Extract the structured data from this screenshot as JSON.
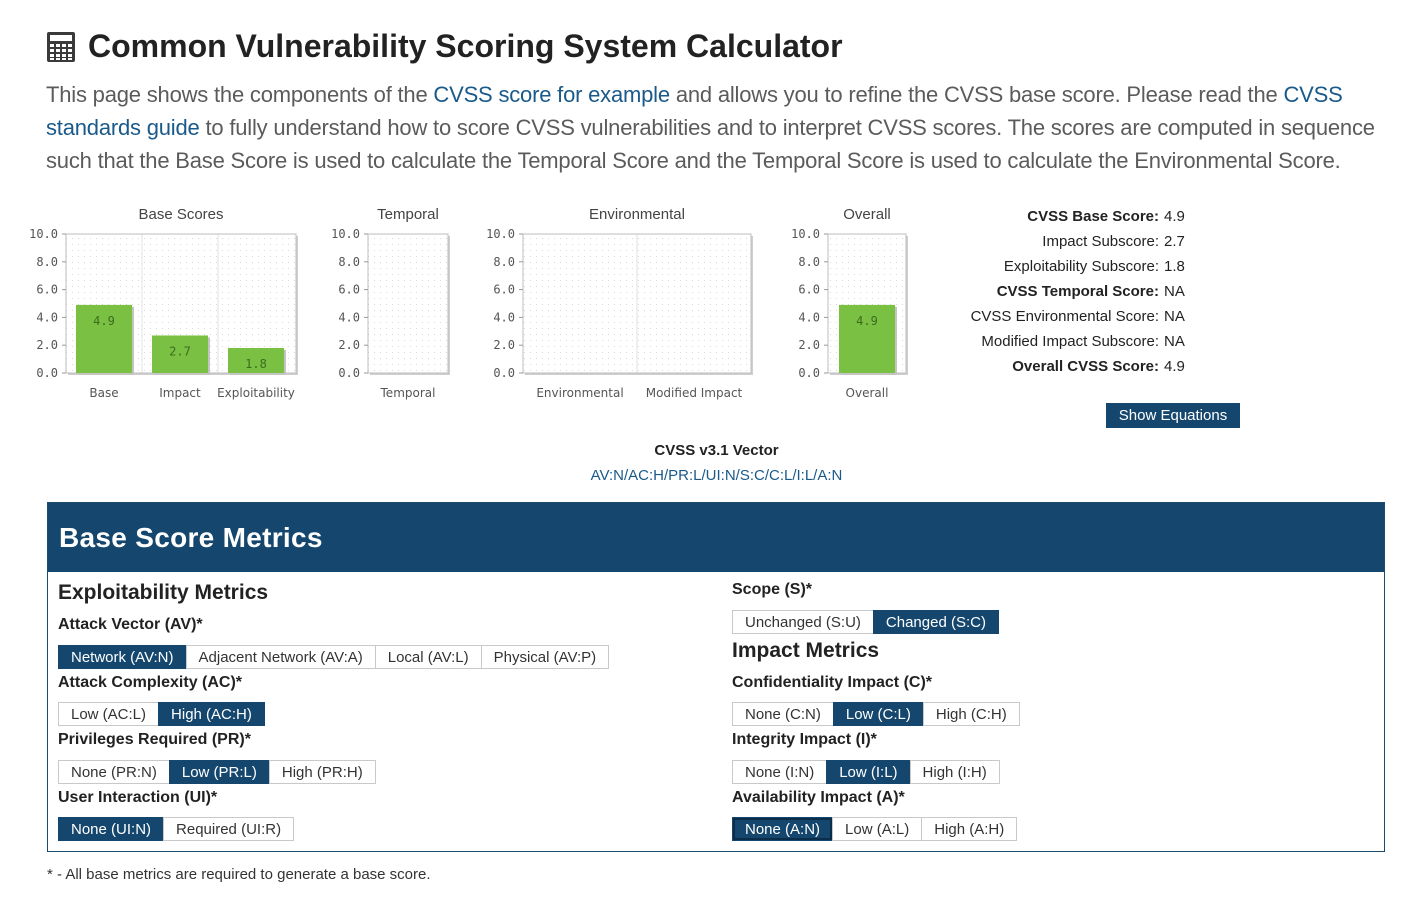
{
  "page": {
    "title": "Common Vulnerability Scoring System Calculator",
    "title_icon": "calculator-icon",
    "intro": {
      "p1": "This page shows the components of the ",
      "link1": "CVSS score for example",
      "p2": " and allows you to refine the CVSS base score. Please read the ",
      "link2": "CVSS standards guide",
      "p3": " to fully understand how to score CVSS vulnerabilities and to interpret CVSS scores. The scores are computed in sequence such that the Base Score is used to calculate the Temporal Score and the Temporal Score is used to calculate the Environmental Score."
    }
  },
  "chart_data": [
    {
      "type": "bar",
      "title": "Base Scores",
      "categories": [
        "Base",
        "Impact",
        "Exploitability"
      ],
      "values": [
        4.9,
        2.7,
        1.8
      ],
      "data_labels": [
        "4.9",
        "2.7",
        "1.8"
      ],
      "ylim": [
        0,
        10
      ],
      "yticks": [
        "0.0",
        "2.0",
        "4.0",
        "6.0",
        "8.0",
        "10.0"
      ],
      "bar_color": "#7ac143"
    },
    {
      "type": "bar",
      "title": "Temporal",
      "categories": [
        "Temporal"
      ],
      "values": [
        null
      ],
      "data_labels": [
        ""
      ],
      "ylim": [
        0,
        10
      ],
      "yticks": [
        "0.0",
        "2.0",
        "4.0",
        "6.0",
        "8.0",
        "10.0"
      ],
      "bar_color": "#7ac143"
    },
    {
      "type": "bar",
      "title": "Environmental",
      "categories": [
        "Environmental",
        "Modified Impact"
      ],
      "values": [
        null,
        null
      ],
      "data_labels": [
        "",
        ""
      ],
      "ylim": [
        0,
        10
      ],
      "yticks": [
        "0.0",
        "2.0",
        "4.0",
        "6.0",
        "8.0",
        "10.0"
      ],
      "bar_color": "#7ac143"
    },
    {
      "type": "bar",
      "title": "Overall",
      "categories": [
        "Overall"
      ],
      "values": [
        4.9
      ],
      "data_labels": [
        "4.9"
      ],
      "ylim": [
        0,
        10
      ],
      "yticks": [
        "0.0",
        "2.0",
        "4.0",
        "6.0",
        "8.0",
        "10.0"
      ],
      "bar_color": "#7ac143"
    }
  ],
  "scores": [
    {
      "label": "CVSS Base Score:",
      "value": "4.9",
      "bold": true
    },
    {
      "label": "Impact Subscore:",
      "value": "2.7",
      "bold": false
    },
    {
      "label": "Exploitability Subscore:",
      "value": "1.8",
      "bold": false
    },
    {
      "label": "CVSS Temporal Score:",
      "value": "NA",
      "bold": true
    },
    {
      "label": "CVSS Environmental Score:",
      "value": "NA",
      "bold": false
    },
    {
      "label": "Modified Impact Subscore:",
      "value": "NA",
      "bold": false
    },
    {
      "label": "Overall CVSS Score:",
      "value": "4.9",
      "bold": true
    }
  ],
  "show_equations_label": "Show Equations",
  "vector": {
    "title": "CVSS v3.1 Vector",
    "value": "AV:N/AC:H/PR:L/UI:N/S:C/C:L/I:L/A:N"
  },
  "panel": {
    "title": "Base Score Metrics",
    "exploitability_title": "Exploitability Metrics",
    "impact_title": "Impact Metrics",
    "footnote": "* - All base metrics are required to generate a base score.",
    "selected_color": "#15476e"
  },
  "metrics": {
    "av": {
      "label": "Attack Vector (AV)*",
      "options": [
        "Network (AV:N)",
        "Adjacent Network (AV:A)",
        "Local (AV:L)",
        "Physical (AV:P)"
      ],
      "selected": 0
    },
    "ac": {
      "label": "Attack Complexity (AC)*",
      "options": [
        "Low (AC:L)",
        "High (AC:H)"
      ],
      "selected": 1
    },
    "pr": {
      "label": "Privileges Required (PR)*",
      "options": [
        "None (PR:N)",
        "Low (PR:L)",
        "High (PR:H)"
      ],
      "selected": 1
    },
    "ui": {
      "label": "User Interaction (UI)*",
      "options": [
        "None (UI:N)",
        "Required (UI:R)"
      ],
      "selected": 0
    },
    "s": {
      "label": "Scope (S)*",
      "options": [
        "Unchanged (S:U)",
        "Changed (S:C)"
      ],
      "selected": 1
    },
    "c": {
      "label": "Confidentiality Impact (C)*",
      "options": [
        "None (C:N)",
        "Low (C:L)",
        "High (C:H)"
      ],
      "selected": 1
    },
    "i": {
      "label": "Integrity Impact (I)*",
      "options": [
        "None (I:N)",
        "Low (I:L)",
        "High (I:H)"
      ],
      "selected": 1
    },
    "a": {
      "label": "Availability Impact (A)*",
      "options": [
        "None (A:N)",
        "Low (A:L)",
        "High (A:H)"
      ],
      "selected": 0
    }
  }
}
